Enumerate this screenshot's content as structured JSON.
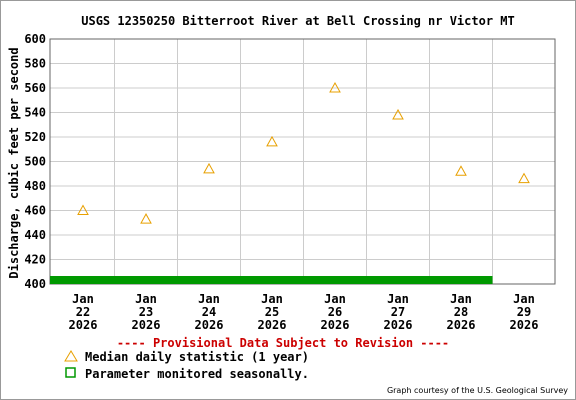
{
  "chart_data": {
    "type": "scatter",
    "title": "USGS 12350250 Bitterroot River at Bell Crossing nr Victor MT",
    "ylabel": "Discharge, cubic feet per second",
    "ylim": [
      400,
      600
    ],
    "yticks": [
      "400",
      "420",
      "440",
      "460",
      "480",
      "500",
      "520",
      "540",
      "560",
      "580",
      "600"
    ],
    "categories": [
      {
        "month": "Jan",
        "day": "22",
        "year": "2026"
      },
      {
        "month": "Jan",
        "day": "23",
        "year": "2026"
      },
      {
        "month": "Jan",
        "day": "24",
        "year": "2026"
      },
      {
        "month": "Jan",
        "day": "25",
        "year": "2026"
      },
      {
        "month": "Jan",
        "day": "26",
        "year": "2026"
      },
      {
        "month": "Jan",
        "day": "27",
        "year": "2026"
      },
      {
        "month": "Jan",
        "day": "28",
        "year": "2026"
      },
      {
        "month": "Jan",
        "day": "29",
        "year": "2026"
      }
    ],
    "series": [
      {
        "name": "Median daily statistic (1 year)",
        "marker": "triangle",
        "color": "#e8a000",
        "values": [
          460,
          453,
          494,
          516,
          560,
          538,
          492,
          486
        ]
      }
    ],
    "seasonal_bar": {
      "name": "Parameter monitored seasonally.",
      "color": "#009900",
      "x_start": "Jan 22 2026",
      "x_end": "Jan 29 2026"
    },
    "grid": true,
    "legend_placement": "bottom-left"
  },
  "footer": {
    "provisional": "---- Provisional Data Subject to Revision ----",
    "credit": "Graph courtesy of the U.S. Geological Survey"
  }
}
